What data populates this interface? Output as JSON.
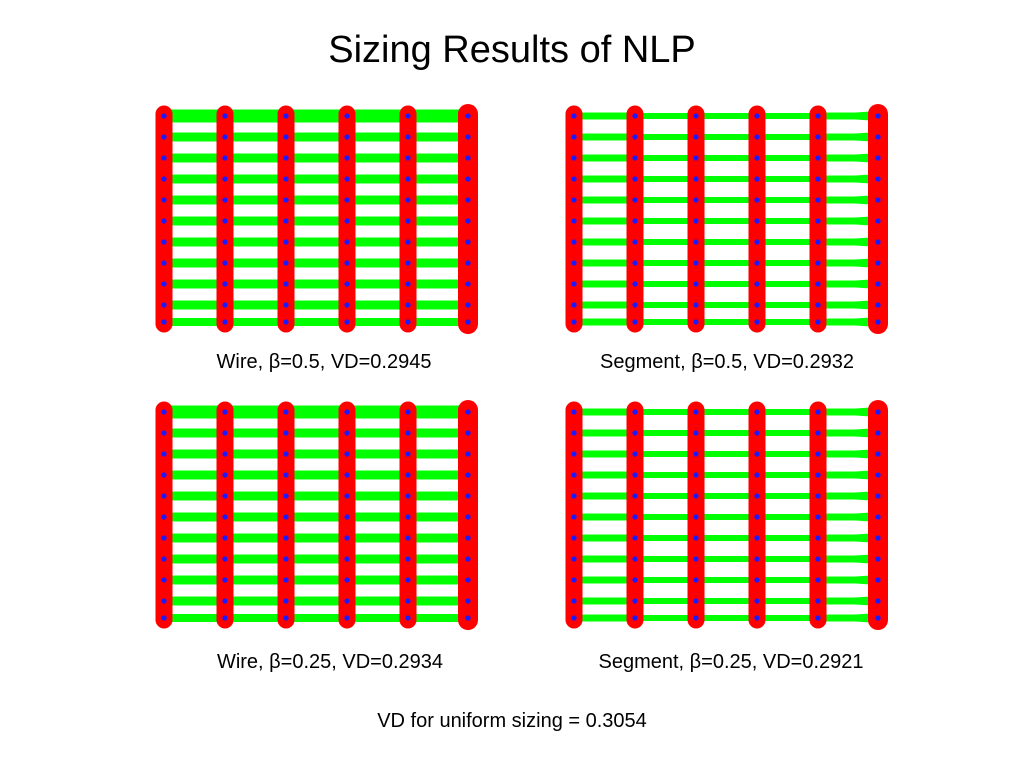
{
  "slide": {
    "title": "Sizing Results of NLP",
    "footnote": "VD for uniform sizing = 0.3054"
  },
  "colors": {
    "vertical_wire": "#ff0000",
    "horizontal_wire": "#00ff00",
    "node": "#1a1aff",
    "background": "#ffffff"
  },
  "panels": [
    {
      "id": "wire-0.5",
      "caption": "Wire, β=0.5, VD=0.2945",
      "method": "Wire",
      "beta": 0.5,
      "vd": 0.2945
    },
    {
      "id": "segment-0.5",
      "caption": "Segment, β=0.5, VD=0.2932",
      "method": "Segment",
      "beta": 0.5,
      "vd": 0.2932
    },
    {
      "id": "wire-0.25",
      "caption": "Wire, β=0.25, VD=0.2934",
      "method": "Wire",
      "beta": 0.25,
      "vd": 0.2934
    },
    {
      "id": "segment-0.25",
      "caption": "Segment, β=0.25, VD=0.2921",
      "method": "Segment",
      "beta": 0.25,
      "vd": 0.2921
    }
  ]
}
